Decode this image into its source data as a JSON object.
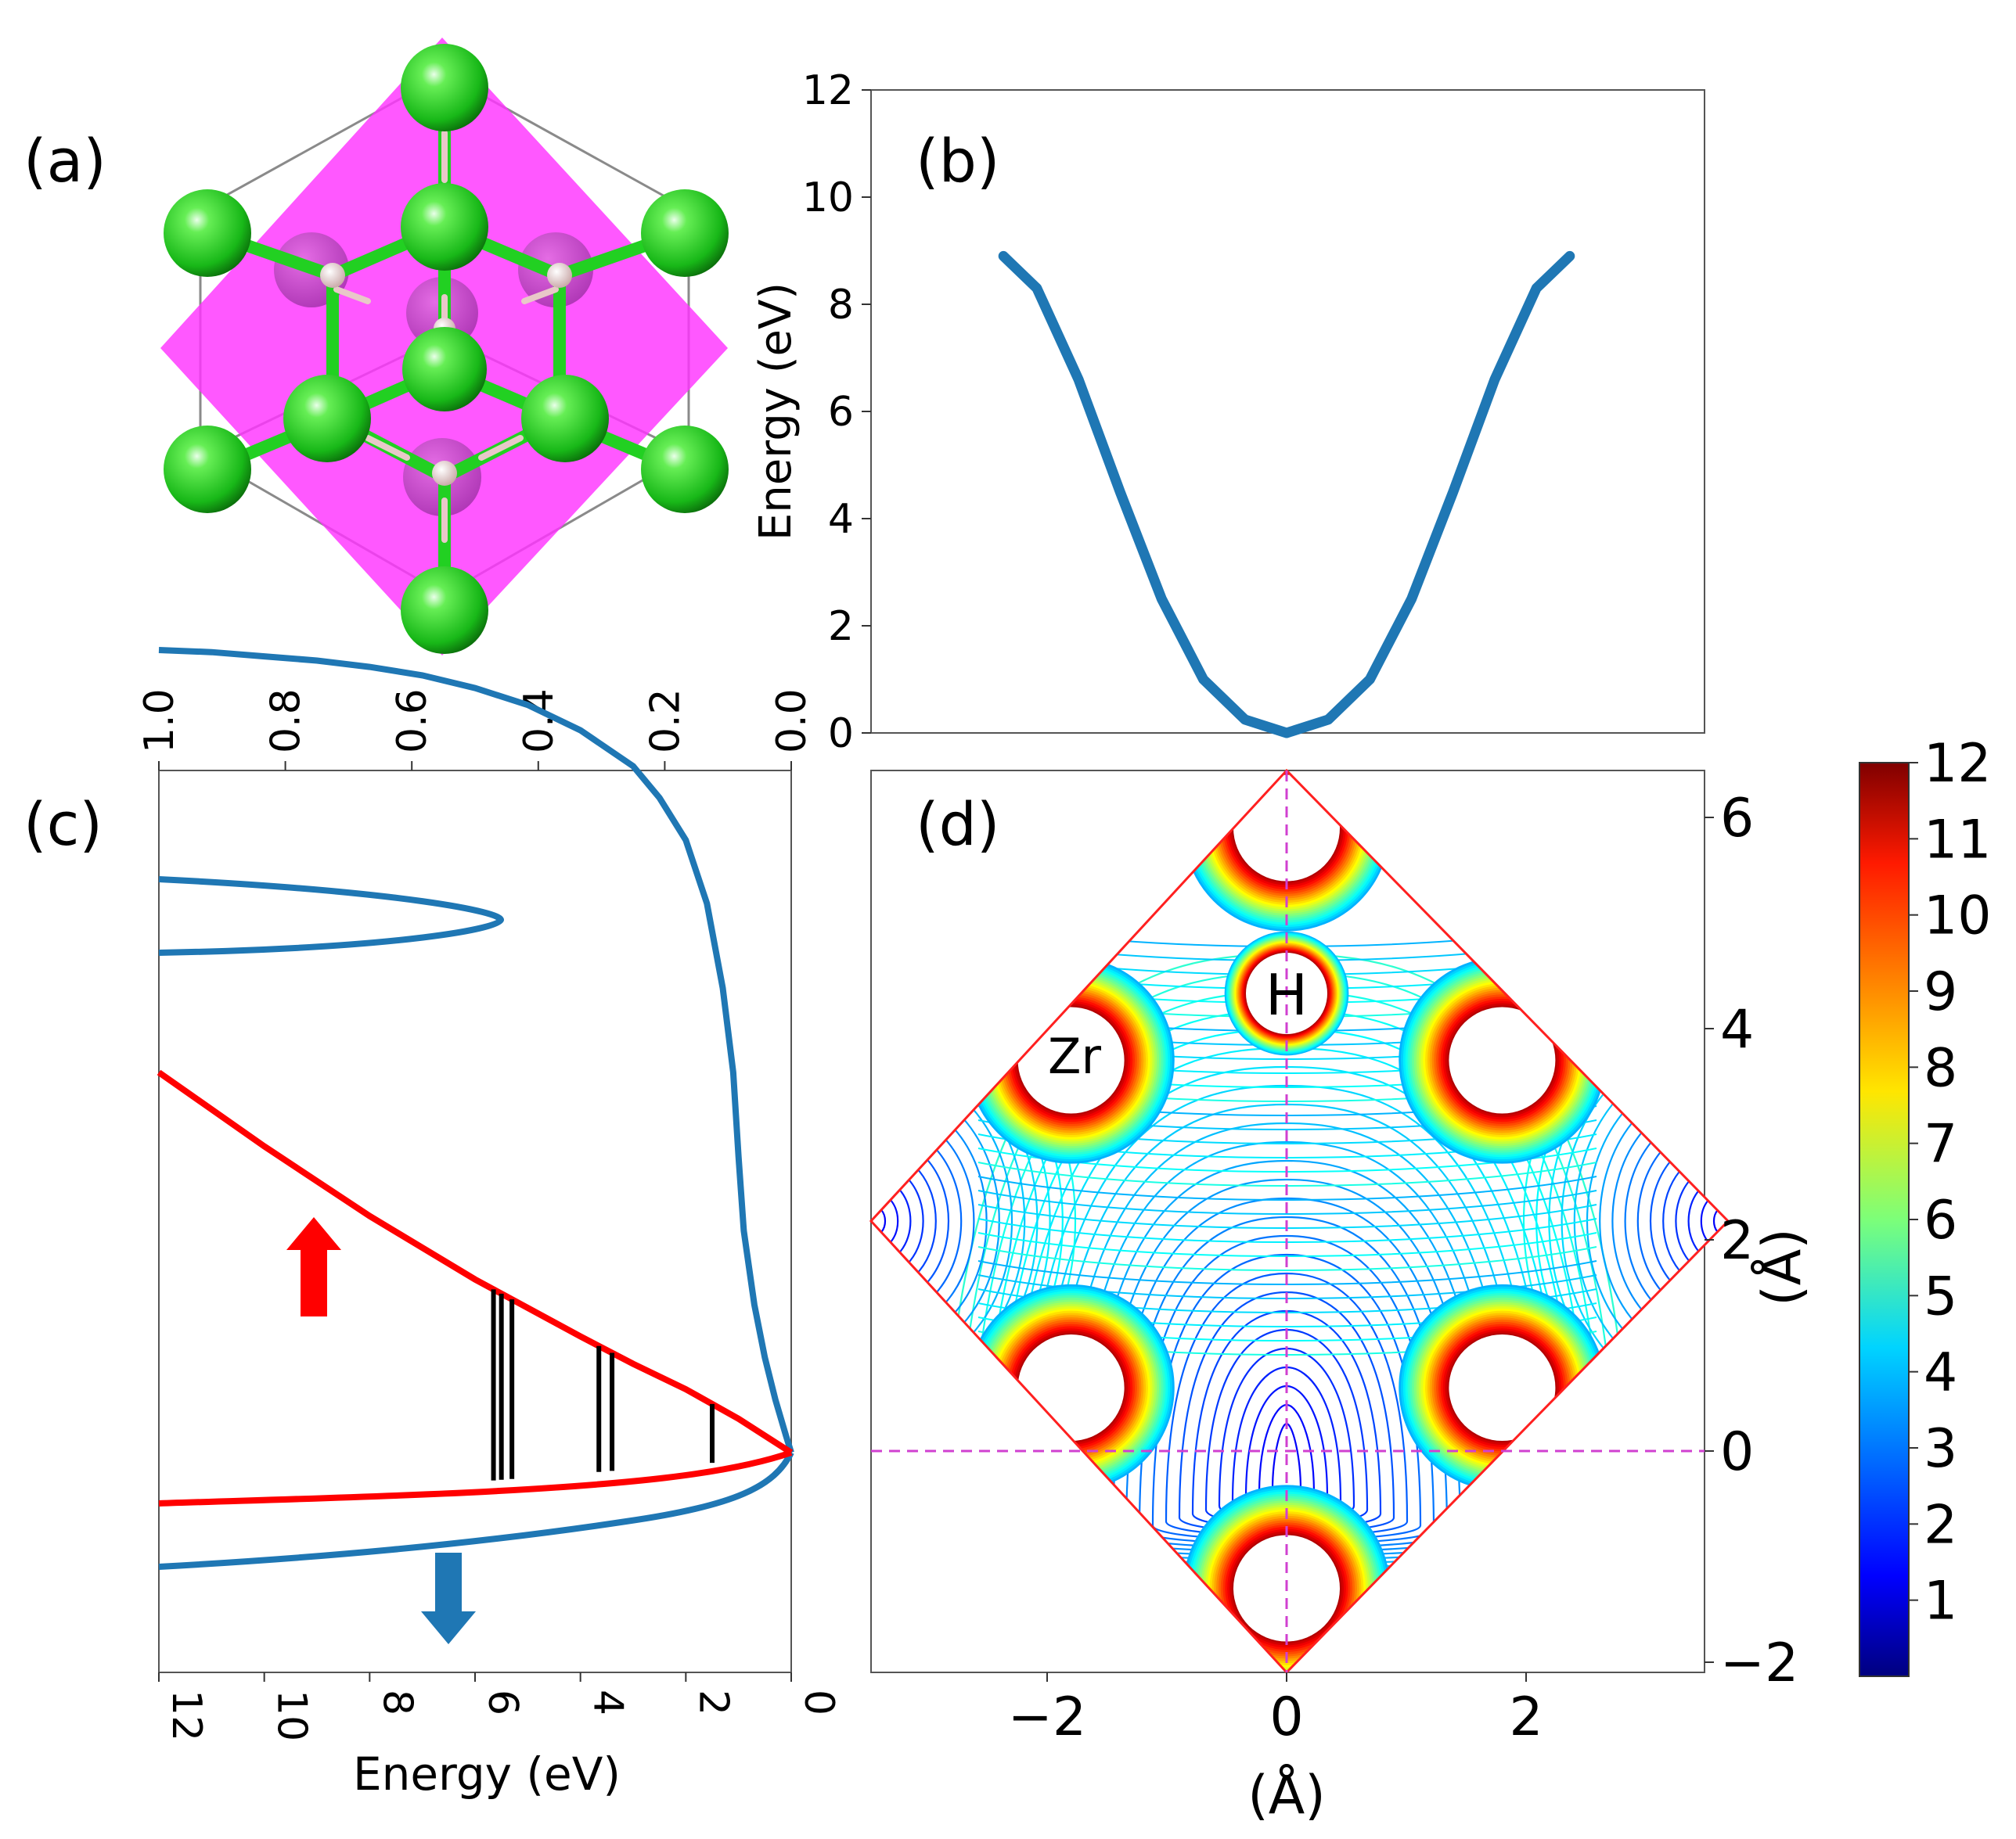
{
  "panels": {
    "a": {
      "label": "(a)",
      "plane_color": "#ff33ff",
      "zr_color": "#22cc22",
      "h_color": "#e8c8c8"
    },
    "b": {
      "label": "(b)",
      "ylabel": "Energy (eV)",
      "yticks": [
        "0",
        "2",
        "4",
        "6",
        "8",
        "10",
        "12"
      ]
    },
    "c": {
      "label": "(c)",
      "xlabel": "Energy (eV)",
      "xticks": [
        "12",
        "10",
        "8",
        "6",
        "4",
        "2",
        "0"
      ],
      "top_ticks": [
        "1.0",
        "0.8",
        "0.6",
        "0.4",
        "0.2",
        "0.0"
      ]
    },
    "d": {
      "label": "(d)",
      "xlabel": "(Å)",
      "ylabel": "(Å)",
      "xticks": [
        "−2",
        "0",
        "2"
      ],
      "yticks": [
        "−2",
        "0",
        "2",
        "4",
        "6"
      ],
      "atom_h": "H",
      "atom_zr": "Zr",
      "colorbar_ticks": [
        "1",
        "2",
        "3",
        "4",
        "5",
        "6",
        "7",
        "8",
        "9",
        "10",
        "11",
        "12"
      ]
    }
  },
  "chart_data": [
    {
      "panel": "b",
      "type": "line",
      "title": "",
      "xlabel": "",
      "ylabel": "Energy (eV)",
      "ylim": [
        0,
        12
      ],
      "xlim": [
        -1,
        1
      ],
      "series": [
        {
          "name": "potential",
          "color": "#1f77b4",
          "x": [
            -0.68,
            -0.6,
            -0.5,
            -0.4,
            -0.3,
            -0.2,
            -0.1,
            0.0,
            0.1,
            0.2,
            0.3,
            0.4,
            0.5,
            0.6,
            0.68
          ],
          "y": [
            8.9,
            8.3,
            6.6,
            4.5,
            2.5,
            1.0,
            0.25,
            0.0,
            0.25,
            1.0,
            2.5,
            4.5,
            6.6,
            8.3,
            8.9
          ]
        }
      ]
    },
    {
      "panel": "c",
      "type": "line",
      "title": "",
      "xlabel": "Energy (eV)",
      "xlim": [
        12,
        0
      ],
      "top_axis_range": [
        1.0,
        0.0
      ],
      "series": [
        {
          "name": "blue curve",
          "color": "#1f77b4",
          "arrow": "down",
          "x": [
            12,
            11,
            10,
            9,
            8,
            7,
            6,
            5,
            4,
            3,
            2.5,
            2,
            1.6,
            1.3,
            1.1,
            1.0,
            0.9,
            0.7,
            0.5,
            0.3,
            0.1,
            0
          ],
          "y": [
            3.8,
            3.79,
            3.77,
            3.75,
            3.72,
            3.68,
            3.62,
            3.54,
            3.42,
            3.25,
            3.1,
            2.9,
            2.6,
            2.2,
            1.8,
            1.4,
            1.05,
            0.7,
            0.45,
            0.25,
            0.08,
            0
          ]
        },
        {
          "name": "red curve",
          "color": "#ff0000",
          "arrow": "up",
          "x": [
            12,
            10,
            8,
            6,
            4,
            3,
            2,
            1,
            0.5,
            0
          ],
          "y": [
            1.8,
            1.45,
            1.12,
            0.82,
            0.55,
            0.42,
            0.3,
            0.16,
            0.08,
            0
          ]
        }
      ],
      "black_lines_energy": [
        5.65,
        5.5,
        5.3,
        3.65,
        3.4,
        1.5
      ]
    },
    {
      "panel": "d",
      "type": "contour",
      "title": "",
      "xlabel": "(Å)",
      "ylabel": "(Å)",
      "xlim": [
        -3.5,
        3.5
      ],
      "ylim": [
        -2,
        6.2
      ],
      "colorbar_range": [
        0,
        12
      ],
      "colorbar_ticks": [
        1,
        2,
        3,
        4,
        5,
        6,
        7,
        8,
        9,
        10,
        11,
        12
      ],
      "atoms": [
        {
          "name": "H",
          "x": 0,
          "y": 4.2
        },
        {
          "name": "Zr",
          "x": -1.8,
          "y": 3.7
        },
        {
          "name": "Zr",
          "x": 1.8,
          "y": 3.7
        },
        {
          "name": "Zr",
          "x": -1.8,
          "y": 0.6
        },
        {
          "name": "Zr",
          "x": 1.8,
          "y": 0.6
        },
        {
          "name": "Zr",
          "x": 0,
          "y": 5.9
        },
        {
          "name": "Zr",
          "x": 0,
          "y": -1.3
        }
      ]
    }
  ]
}
